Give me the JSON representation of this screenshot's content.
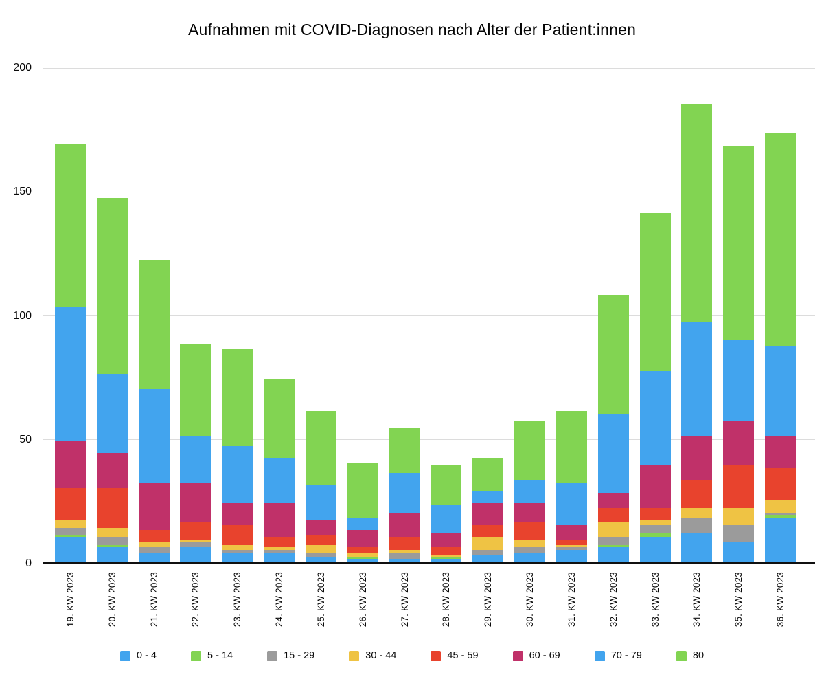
{
  "title": "Aufnahmen mit COVID-Diagnosen nach Alter der Patient:innen",
  "chart_data": {
    "type": "bar",
    "stacked": true,
    "title": "Aufnahmen mit COVID-Diagnosen nach Alter der Patient:innen",
    "xlabel": "",
    "ylabel": "",
    "ylim": [
      0,
      200
    ],
    "yticks": [
      0,
      50,
      100,
      150,
      200
    ],
    "grid": true,
    "legend_position": "bottom",
    "categories": [
      "19. KW 2023",
      "20. KW 2023",
      "21. KW 2023",
      "22. KW 2023",
      "23. KW 2023",
      "24. KW 2023",
      "25. KW 2023",
      "26. KW 2023",
      "27. KW 2023",
      "28. KW 2023",
      "29. KW 2023",
      "30. KW 2023",
      "31. KW 2023",
      "32. KW 2023",
      "33. KW 2023",
      "34. KW 2023",
      "35. KW 2023",
      "36. KW 2023"
    ],
    "series": [
      {
        "name": "0 - 4",
        "color": "#42A4EE",
        "values": [
          10,
          6,
          4,
          6,
          4,
          4,
          2,
          1,
          1,
          1,
          3,
          4,
          5,
          6,
          10,
          12,
          8,
          18
        ]
      },
      {
        "name": "5 - 14",
        "color": "#82D452",
        "values": [
          1,
          1,
          0,
          0,
          0,
          0,
          0,
          1,
          0,
          1,
          0,
          0,
          0,
          1,
          2,
          0,
          0,
          1
        ]
      },
      {
        "name": "15 - 29",
        "color": "#9B9B9B",
        "values": [
          3,
          3,
          2,
          2,
          1,
          1,
          2,
          0,
          3,
          0,
          2,
          2,
          1,
          3,
          3,
          6,
          7,
          1
        ]
      },
      {
        "name": "30 - 44",
        "color": "#EFC344",
        "values": [
          3,
          4,
          2,
          1,
          2,
          1,
          3,
          2,
          1,
          1,
          5,
          3,
          1,
          6,
          2,
          4,
          7,
          5
        ]
      },
      {
        "name": "45 - 59",
        "color": "#E8432D",
        "values": [
          13,
          16,
          5,
          7,
          8,
          4,
          4,
          2,
          5,
          3,
          5,
          7,
          2,
          6,
          5,
          11,
          17,
          13
        ]
      },
      {
        "name": "60 - 69",
        "color": "#C03169",
        "values": [
          19,
          14,
          19,
          16,
          9,
          14,
          6,
          7,
          10,
          6,
          9,
          8,
          6,
          6,
          17,
          18,
          18,
          13
        ]
      },
      {
        "name": "70 - 79",
        "color": "#42A4EE",
        "values": [
          54,
          32,
          38,
          19,
          23,
          18,
          14,
          5,
          16,
          11,
          5,
          9,
          17,
          32,
          38,
          46,
          33,
          36
        ]
      },
      {
        "name": "80",
        "color": "#82D452",
        "values": [
          66,
          71,
          52,
          37,
          39,
          32,
          30,
          22,
          18,
          16,
          13,
          24,
          29,
          48,
          64,
          88,
          78,
          86
        ]
      }
    ],
    "gridline_color": "#dcdcdc",
    "axis_color": "#101010"
  }
}
